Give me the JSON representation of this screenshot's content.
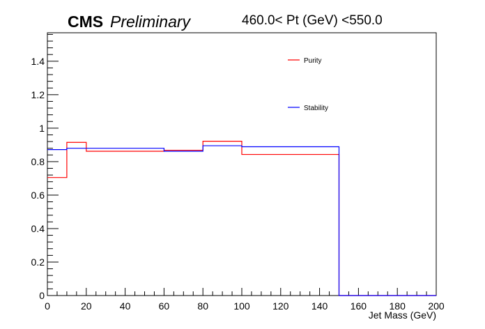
{
  "header": {
    "experiment": "CMS",
    "status": "Preliminary",
    "pt_range": "460.0< Pt (GeV) <550.0"
  },
  "chart_data": {
    "type": "line",
    "xlabel": "Jet Mass (GeV)",
    "ylabel": "",
    "xlim": [
      0,
      200
    ],
    "ylim": [
      0,
      1.57
    ],
    "x_ticks": [
      0,
      20,
      40,
      60,
      80,
      100,
      120,
      140,
      160,
      180,
      200
    ],
    "y_ticks": [
      0,
      0.2,
      0.4,
      0.6,
      0.8,
      1,
      1.2,
      1.4
    ],
    "y_tick_labels": [
      "0",
      "0.2",
      "0.4",
      "0.6",
      "0.8",
      "1",
      "1.2",
      "1.4"
    ],
    "grid": false,
    "legend": "top-right",
    "bin_edges": [
      0,
      10,
      20,
      60,
      80,
      100,
      150,
      200
    ],
    "series": [
      {
        "name": "Purity",
        "color": "#ff0000",
        "values": [
          0.705,
          0.915,
          0.862,
          0.868,
          0.922,
          0.843,
          0.0
        ]
      },
      {
        "name": "Stability",
        "color": "#0000ff",
        "values": [
          0.872,
          0.88,
          0.88,
          0.862,
          0.895,
          0.889,
          0.0
        ]
      }
    ]
  }
}
